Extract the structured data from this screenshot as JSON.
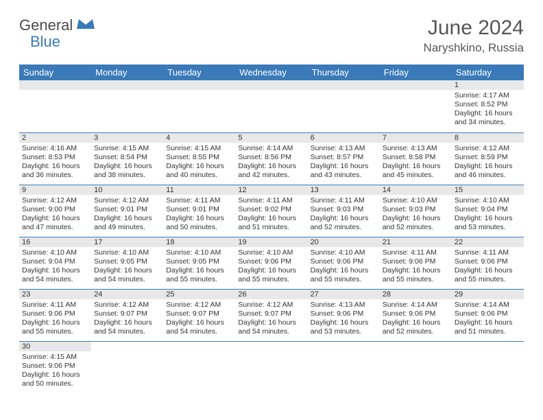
{
  "logo": {
    "text1": "General",
    "text2": "Blue"
  },
  "title": "June 2024",
  "location": "Naryshkino, Russia",
  "colors": {
    "header_bg": "#3a7ab8",
    "daynum_bg": "#e8e8e8",
    "border": "#3a7ab8"
  },
  "weekdays": [
    "Sunday",
    "Monday",
    "Tuesday",
    "Wednesday",
    "Thursday",
    "Friday",
    "Saturday"
  ],
  "weeks": [
    [
      null,
      null,
      null,
      null,
      null,
      null,
      {
        "n": "1",
        "sr": "Sunrise: 4:17 AM",
        "ss": "Sunset: 8:52 PM",
        "dl": "Daylight: 16 hours and 34 minutes."
      }
    ],
    [
      {
        "n": "2",
        "sr": "Sunrise: 4:16 AM",
        "ss": "Sunset: 8:53 PM",
        "dl": "Daylight: 16 hours and 36 minutes."
      },
      {
        "n": "3",
        "sr": "Sunrise: 4:15 AM",
        "ss": "Sunset: 8:54 PM",
        "dl": "Daylight: 16 hours and 38 minutes."
      },
      {
        "n": "4",
        "sr": "Sunrise: 4:15 AM",
        "ss": "Sunset: 8:55 PM",
        "dl": "Daylight: 16 hours and 40 minutes."
      },
      {
        "n": "5",
        "sr": "Sunrise: 4:14 AM",
        "ss": "Sunset: 8:56 PM",
        "dl": "Daylight: 16 hours and 42 minutes."
      },
      {
        "n": "6",
        "sr": "Sunrise: 4:13 AM",
        "ss": "Sunset: 8:57 PM",
        "dl": "Daylight: 16 hours and 43 minutes."
      },
      {
        "n": "7",
        "sr": "Sunrise: 4:13 AM",
        "ss": "Sunset: 8:58 PM",
        "dl": "Daylight: 16 hours and 45 minutes."
      },
      {
        "n": "8",
        "sr": "Sunrise: 4:12 AM",
        "ss": "Sunset: 8:59 PM",
        "dl": "Daylight: 16 hours and 46 minutes."
      }
    ],
    [
      {
        "n": "9",
        "sr": "Sunrise: 4:12 AM",
        "ss": "Sunset: 9:00 PM",
        "dl": "Daylight: 16 hours and 47 minutes."
      },
      {
        "n": "10",
        "sr": "Sunrise: 4:12 AM",
        "ss": "Sunset: 9:01 PM",
        "dl": "Daylight: 16 hours and 49 minutes."
      },
      {
        "n": "11",
        "sr": "Sunrise: 4:11 AM",
        "ss": "Sunset: 9:01 PM",
        "dl": "Daylight: 16 hours and 50 minutes."
      },
      {
        "n": "12",
        "sr": "Sunrise: 4:11 AM",
        "ss": "Sunset: 9:02 PM",
        "dl": "Daylight: 16 hours and 51 minutes."
      },
      {
        "n": "13",
        "sr": "Sunrise: 4:11 AM",
        "ss": "Sunset: 9:03 PM",
        "dl": "Daylight: 16 hours and 52 minutes."
      },
      {
        "n": "14",
        "sr": "Sunrise: 4:10 AM",
        "ss": "Sunset: 9:03 PM",
        "dl": "Daylight: 16 hours and 52 minutes."
      },
      {
        "n": "15",
        "sr": "Sunrise: 4:10 AM",
        "ss": "Sunset: 9:04 PM",
        "dl": "Daylight: 16 hours and 53 minutes."
      }
    ],
    [
      {
        "n": "16",
        "sr": "Sunrise: 4:10 AM",
        "ss": "Sunset: 9:04 PM",
        "dl": "Daylight: 16 hours and 54 minutes."
      },
      {
        "n": "17",
        "sr": "Sunrise: 4:10 AM",
        "ss": "Sunset: 9:05 PM",
        "dl": "Daylight: 16 hours and 54 minutes."
      },
      {
        "n": "18",
        "sr": "Sunrise: 4:10 AM",
        "ss": "Sunset: 9:05 PM",
        "dl": "Daylight: 16 hours and 55 minutes."
      },
      {
        "n": "19",
        "sr": "Sunrise: 4:10 AM",
        "ss": "Sunset: 9:06 PM",
        "dl": "Daylight: 16 hours and 55 minutes."
      },
      {
        "n": "20",
        "sr": "Sunrise: 4:10 AM",
        "ss": "Sunset: 9:06 PM",
        "dl": "Daylight: 16 hours and 55 minutes."
      },
      {
        "n": "21",
        "sr": "Sunrise: 4:11 AM",
        "ss": "Sunset: 9:06 PM",
        "dl": "Daylight: 16 hours and 55 minutes."
      },
      {
        "n": "22",
        "sr": "Sunrise: 4:11 AM",
        "ss": "Sunset: 9:06 PM",
        "dl": "Daylight: 16 hours and 55 minutes."
      }
    ],
    [
      {
        "n": "23",
        "sr": "Sunrise: 4:11 AM",
        "ss": "Sunset: 9:06 PM",
        "dl": "Daylight: 16 hours and 55 minutes."
      },
      {
        "n": "24",
        "sr": "Sunrise: 4:12 AM",
        "ss": "Sunset: 9:07 PM",
        "dl": "Daylight: 16 hours and 54 minutes."
      },
      {
        "n": "25",
        "sr": "Sunrise: 4:12 AM",
        "ss": "Sunset: 9:07 PM",
        "dl": "Daylight: 16 hours and 54 minutes."
      },
      {
        "n": "26",
        "sr": "Sunrise: 4:12 AM",
        "ss": "Sunset: 9:07 PM",
        "dl": "Daylight: 16 hours and 54 minutes."
      },
      {
        "n": "27",
        "sr": "Sunrise: 4:13 AM",
        "ss": "Sunset: 9:06 PM",
        "dl": "Daylight: 16 hours and 53 minutes."
      },
      {
        "n": "28",
        "sr": "Sunrise: 4:14 AM",
        "ss": "Sunset: 9:06 PM",
        "dl": "Daylight: 16 hours and 52 minutes."
      },
      {
        "n": "29",
        "sr": "Sunrise: 4:14 AM",
        "ss": "Sunset: 9:06 PM",
        "dl": "Daylight: 16 hours and 51 minutes."
      }
    ],
    [
      {
        "n": "30",
        "sr": "Sunrise: 4:15 AM",
        "ss": "Sunset: 9:06 PM",
        "dl": "Daylight: 16 hours and 50 minutes."
      },
      null,
      null,
      null,
      null,
      null,
      null
    ]
  ]
}
